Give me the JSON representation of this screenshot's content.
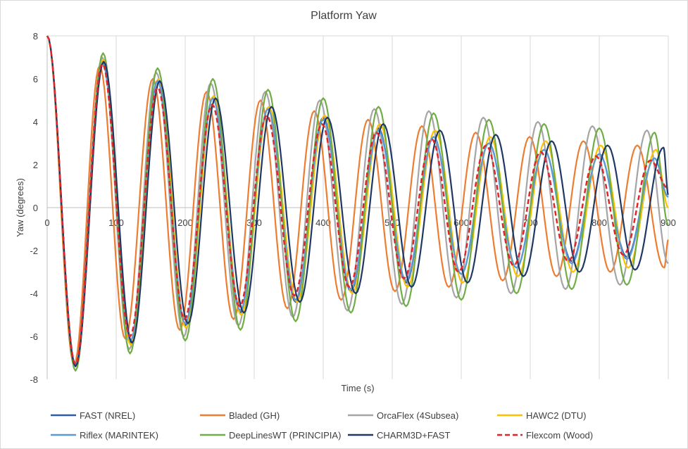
{
  "chart_data": {
    "type": "line",
    "title": "Platform Yaw",
    "xlabel": "Time (s)",
    "ylabel": "Yaw (degrees)",
    "xlim": [
      0,
      900
    ],
    "ylim": [
      -8,
      8
    ],
    "xticks": [
      0,
      100,
      200,
      300,
      400,
      500,
      600,
      700,
      800,
      900
    ],
    "yticks": [
      -8,
      -6,
      -4,
      -2,
      0,
      2,
      4,
      6,
      8
    ],
    "grid": "vertical",
    "legend_position": "bottom",
    "series": [
      {
        "name": "FAST (NREL)",
        "color": "#2e5da8",
        "dash": "solid",
        "x": [
          0,
          40,
          80,
          120,
          160,
          200,
          240,
          280,
          320,
          360,
          400,
          440,
          480,
          520,
          560,
          600,
          640,
          680,
          720,
          760,
          800,
          840,
          880,
          900
        ],
        "y": [
          8,
          -7.3,
          6.8,
          -6.3,
          5.9,
          -5.5,
          5.1,
          -4.9,
          4.6,
          -4.4,
          4.2,
          -3.9,
          3.7,
          -3.5,
          3.3,
          -3.1,
          3.0,
          -2.8,
          2.7,
          -2.5,
          2.5,
          -2.3,
          2.3,
          0.5
        ]
      },
      {
        "name": "Bladed (GH)",
        "color": "#ed7d31",
        "dash": "solid",
        "x": [
          0,
          39,
          76,
          113,
          153,
          192,
          231,
          270,
          309,
          348,
          387,
          426,
          465,
          504,
          543,
          582,
          621,
          660,
          699,
          738,
          777,
          816,
          855,
          894,
          900
        ],
        "y": [
          8,
          -7.3,
          6.6,
          -6.1,
          6.0,
          -5.7,
          5.4,
          -5.2,
          5.0,
          -4.7,
          4.5,
          -4.3,
          4.1,
          -3.9,
          3.8,
          -3.7,
          3.5,
          -3.4,
          3.3,
          -3.2,
          3.1,
          -3.0,
          2.9,
          -2.8,
          -1.5
        ]
      },
      {
        "name": "OrcaFlex (4Subsea)",
        "color": "#a5a5a5",
        "dash": "solid",
        "x": [
          0,
          41,
          80,
          119,
          158,
          198,
          237,
          277,
          316,
          356,
          395,
          435,
          474,
          514,
          553,
          593,
          632,
          672,
          711,
          751,
          790,
          830,
          869,
          900
        ],
        "y": [
          8,
          -7.4,
          7.0,
          -6.6,
          6.3,
          -6.0,
          5.8,
          -5.5,
          5.4,
          -5.1,
          5.0,
          -4.8,
          4.6,
          -4.5,
          4.5,
          -4.2,
          4.2,
          -4.0,
          4.0,
          -3.8,
          3.8,
          -3.6,
          3.6,
          -2.6
        ]
      },
      {
        "name": "HAWC2 (DTU)",
        "color": "#ffc000",
        "dash": "solid",
        "x": [
          0,
          41,
          81,
          121,
          161,
          201,
          241,
          281,
          321,
          362,
          402,
          442,
          482,
          522,
          562,
          602,
          642,
          682,
          722,
          762,
          802,
          842,
          882,
          900
        ],
        "y": [
          8,
          -7.4,
          6.9,
          -6.4,
          6.0,
          -5.6,
          5.2,
          -5.0,
          4.7,
          -4.4,
          4.3,
          -4.0,
          3.9,
          -3.7,
          3.6,
          -3.5,
          3.3,
          -3.2,
          3.1,
          -3.0,
          2.9,
          -2.8,
          2.7,
          0.0
        ]
      },
      {
        "name": "Riflex (MARINTEK)",
        "color": "#5b9bd5",
        "dash": "solid",
        "x": [
          0,
          41,
          81,
          121,
          160,
          200,
          240,
          280,
          320,
          360,
          400,
          440,
          480,
          520,
          560,
          600,
          640,
          680,
          720,
          760,
          800,
          840,
          880,
          900
        ],
        "y": [
          8,
          -7.3,
          6.8,
          -6.2,
          5.9,
          -5.4,
          5.1,
          -4.8,
          4.6,
          -4.3,
          4.1,
          -3.8,
          3.6,
          -3.4,
          3.3,
          -3.1,
          3.0,
          -2.8,
          2.7,
          -2.6,
          2.5,
          -2.4,
          2.3,
          0.5
        ]
      },
      {
        "name": "DeepLinesWT (PRINCIPIA)",
        "color": "#70ad47",
        "dash": "solid",
        "x": [
          0,
          41,
          81,
          120,
          160,
          200,
          240,
          280,
          320,
          360,
          400,
          440,
          480,
          520,
          560,
          600,
          640,
          680,
          720,
          760,
          800,
          840,
          880,
          900
        ],
        "y": [
          8,
          -7.6,
          7.2,
          -6.8,
          6.5,
          -6.2,
          6.0,
          -5.7,
          5.5,
          -5.3,
          5.1,
          -4.9,
          4.7,
          -4.6,
          4.4,
          -4.3,
          4.1,
          -4.0,
          3.9,
          -3.8,
          3.7,
          -3.6,
          3.5,
          -0.8
        ]
      },
      {
        "name": "CHARM3D+FAST",
        "color": "#203864",
        "dash": "solid",
        "x": [
          0,
          41,
          82,
          123,
          163,
          204,
          244,
          285,
          325,
          366,
          406,
          447,
          487,
          528,
          569,
          609,
          650,
          690,
          731,
          771,
          812,
          852,
          893,
          900
        ],
        "y": [
          8,
          -7.4,
          6.8,
          -6.3,
          5.9,
          -5.4,
          5.1,
          -4.9,
          4.7,
          -4.4,
          4.2,
          -4.0,
          3.9,
          -3.7,
          3.6,
          -3.5,
          3.4,
          -3.2,
          3.1,
          -3.0,
          2.9,
          -2.9,
          2.8,
          0.6
        ]
      },
      {
        "name": "Flexcom (Wood)",
        "color": "#e0262b",
        "dash": "dashed",
        "x": [
          0,
          41,
          80,
          120,
          160,
          199,
          239,
          279,
          318,
          358,
          398,
          438,
          477,
          517,
          557,
          596,
          636,
          676,
          715,
          755,
          795,
          835,
          874,
          900
        ],
        "y": [
          8,
          -7.3,
          6.7,
          -6.0,
          5.6,
          -5.2,
          4.8,
          -4.6,
          4.3,
          -4.1,
          3.9,
          -3.7,
          3.5,
          -3.3,
          3.2,
          -3.0,
          2.9,
          -2.7,
          2.6,
          -2.5,
          2.4,
          -2.2,
          2.2,
          0.9
        ]
      }
    ]
  }
}
